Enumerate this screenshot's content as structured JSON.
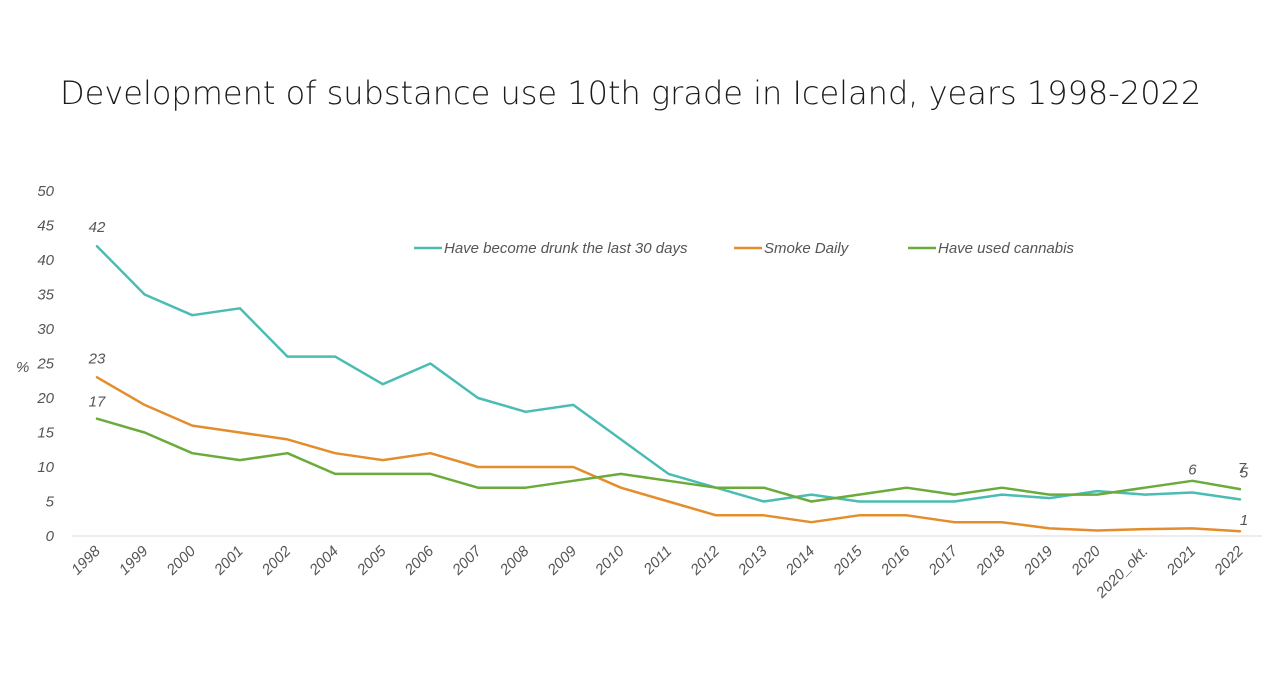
{
  "title": "Development of substance use 10th grade in Iceland, years 1998-2022",
  "chart_data": {
    "type": "line",
    "title": "Development of substance use 10th grade in Iceland, years 1998-2022",
    "xlabel": "",
    "ylabel": "%",
    "ylim": [
      0,
      50
    ],
    "yticks": [
      0,
      5,
      10,
      15,
      20,
      25,
      30,
      35,
      40,
      45,
      50
    ],
    "categories": [
      "1998",
      "1999",
      "2000",
      "2001",
      "2002",
      "2004",
      "2005",
      "2006",
      "2007",
      "2008",
      "2009",
      "2010",
      "2011",
      "2012",
      "2013",
      "2014",
      "2015",
      "2016",
      "2017",
      "2018",
      "2019",
      "2020",
      "2020_okt.",
      "2021",
      "2022"
    ],
    "legend_position": "top",
    "series": [
      {
        "name": "Have become drunk the last 30 days",
        "color": "#4bbcb4",
        "values": [
          42,
          35,
          32,
          33,
          26,
          26,
          22,
          25,
          20,
          18,
          19,
          14,
          9,
          7,
          5,
          6,
          5,
          5,
          5,
          6,
          5.5,
          6.5,
          6,
          6.3,
          5.3
        ]
      },
      {
        "name": "Smoke Daily",
        "color": "#e38d2c",
        "values": [
          23,
          19,
          16,
          15,
          14,
          12,
          11,
          12,
          10,
          10,
          10,
          7,
          5,
          3,
          3,
          2,
          3,
          3,
          2,
          2,
          1.1,
          0.8,
          1,
          1.1,
          0.7
        ]
      },
      {
        "name": "Have used cannabis",
        "color": "#6aab3c",
        "values": [
          17,
          15,
          12,
          11,
          12,
          9,
          9,
          9,
          7,
          7,
          8,
          9,
          8,
          7,
          7,
          5,
          6,
          7,
          6,
          7,
          6,
          6,
          7,
          8,
          6.8
        ]
      }
    ],
    "annotations": [
      {
        "series": 0,
        "index": 0,
        "text": "42"
      },
      {
        "series": 1,
        "index": 0,
        "text": "23"
      },
      {
        "series": 2,
        "index": 0,
        "text": "17"
      },
      {
        "series": 0,
        "index": 23,
        "text": "6"
      },
      {
        "series": 0,
        "index": 24,
        "text": "5"
      },
      {
        "series": 1,
        "index": 24,
        "text": "1"
      },
      {
        "series": 2,
        "index": 24,
        "text": "7"
      }
    ]
  }
}
